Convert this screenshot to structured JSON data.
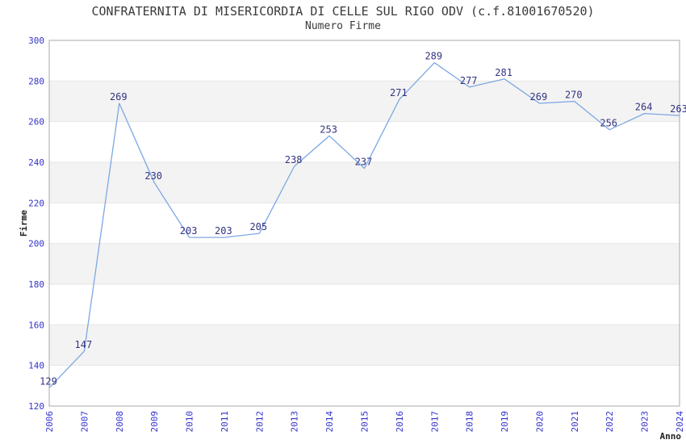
{
  "chart_data": {
    "type": "line",
    "title": "CONFRATERNITA DI MISERICORDIA DI CELLE SUL RIGO ODV (c.f.81001670520)",
    "subtitle": "Numero Firme",
    "xlabel": "Anno",
    "ylabel": "Firme",
    "x": [
      "2006",
      "2007",
      "2008",
      "2009",
      "2010",
      "2011",
      "2012",
      "2013",
      "2014",
      "2015",
      "2016",
      "2017",
      "2018",
      "2019",
      "2020",
      "2021",
      "2022",
      "2023",
      "2024"
    ],
    "values": [
      129,
      147,
      269,
      230,
      203,
      203,
      205,
      238,
      253,
      237,
      271,
      289,
      277,
      281,
      269,
      270,
      256,
      264,
      263
    ],
    "ylim": [
      120,
      300
    ],
    "ytick_step": 20,
    "yticks": [
      "120",
      "140",
      "160",
      "180",
      "200",
      "220",
      "240",
      "260",
      "280",
      "300"
    ],
    "grid": "alternating-horizontal-bands",
    "legend": "none",
    "colors": {
      "line": "#7da7e4",
      "data_label": "#333382",
      "tick_label": "#3232cd",
      "band": "#f3f3f3",
      "gridline": "#e6e6e6",
      "plot_border": "#aaaaaa",
      "title": "#3a3a3a",
      "axis_title": "#222222",
      "background": "#ffffff"
    }
  }
}
